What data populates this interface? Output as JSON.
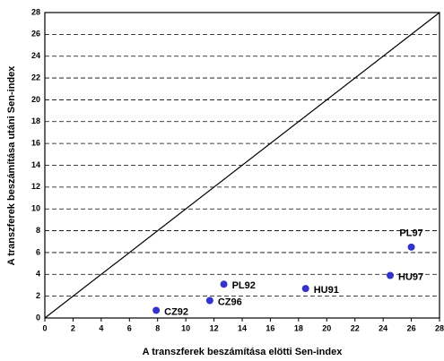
{
  "chart_data": {
    "type": "scatter",
    "x_label": "A transzferek beszámítása elötti Sen-index",
    "y_label": "A transzferek beszámítása utáni Sen-index",
    "labels": [
      "CZ92",
      "CZ96",
      "PL92",
      "HU91",
      "HU97",
      "PL97"
    ],
    "x": [
      7.9,
      11.7,
      12.7,
      18.5,
      24.5,
      26
    ],
    "values": [
      0.7,
      1.6,
      3.1,
      2.7,
      3.9,
      6.5
    ],
    "color": "#3333cc",
    "xlim": [
      0,
      28
    ],
    "ylim": [
      0,
      28
    ],
    "xticks": [
      0,
      2,
      4,
      6,
      8,
      10,
      12,
      14,
      16,
      18,
      20,
      22,
      24,
      26,
      28
    ],
    "yticks": [
      0,
      2,
      4,
      6,
      8,
      10,
      12,
      14,
      16,
      18,
      20,
      22,
      24,
      26,
      28
    ],
    "grid": true
  }
}
